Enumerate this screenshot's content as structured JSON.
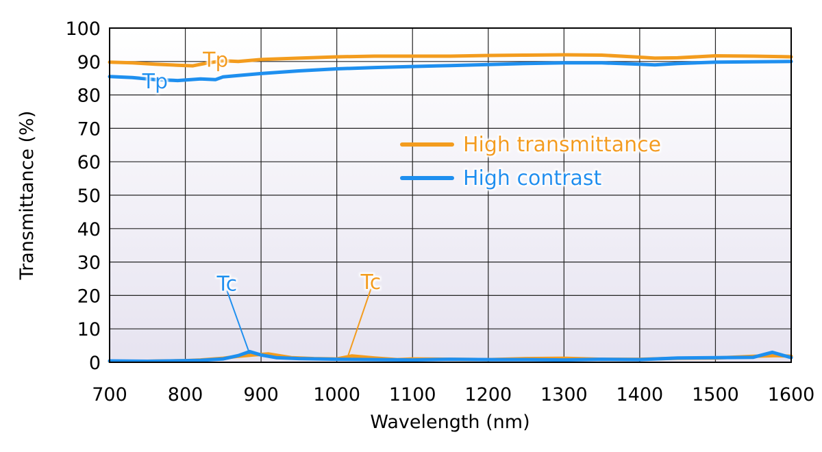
{
  "chart_data": {
    "type": "line",
    "title": "",
    "xlabel": "Wavelength (nm)",
    "ylabel": "Transmittance (%)",
    "xlim": [
      700,
      1600
    ],
    "ylim": [
      0,
      100
    ],
    "xticks": [
      700,
      800,
      900,
      1000,
      1100,
      1200,
      1300,
      1400,
      1500,
      1600
    ],
    "yticks": [
      0,
      10,
      20,
      30,
      40,
      50,
      60,
      70,
      80,
      90,
      100
    ],
    "grid": true,
    "legend_position": "top-right",
    "series": [
      {
        "name": "High transmittance",
        "color": "#f39c1e",
        "tp": {
          "x": [
            700,
            730,
            760,
            790,
            810,
            830,
            850,
            870,
            900,
            950,
            1000,
            1050,
            1100,
            1150,
            1200,
            1250,
            1300,
            1350,
            1400,
            1420,
            1450,
            1500,
            1550,
            1600
          ],
          "y": [
            89.8,
            89.6,
            89.2,
            88.9,
            88.7,
            89.6,
            90.2,
            90.0,
            90.6,
            91.0,
            91.4,
            91.6,
            91.6,
            91.6,
            91.8,
            91.9,
            92.0,
            91.9,
            91.3,
            91.0,
            91.1,
            91.7,
            91.6,
            91.4
          ]
        },
        "tc": {
          "x": [
            700,
            750,
            800,
            820,
            850,
            870,
            890,
            910,
            940,
            970,
            1000,
            1020,
            1050,
            1080,
            1100,
            1150,
            1200,
            1250,
            1300,
            1350,
            1400,
            1450,
            1500,
            1550,
            1580,
            1600
          ],
          "y": [
            0.3,
            0.3,
            0.5,
            0.7,
            1.2,
            1.8,
            2.2,
            2.5,
            1.4,
            1.1,
            1.0,
            1.9,
            1.3,
            0.8,
            1.0,
            0.9,
            0.8,
            1.1,
            1.2,
            0.9,
            0.9,
            1.2,
            1.3,
            1.8,
            2.0,
            1.8
          ]
        }
      },
      {
        "name": "High contrast",
        "color": "#1e8fef",
        "tp": {
          "x": [
            700,
            730,
            760,
            790,
            820,
            840,
            850,
            870,
            900,
            950,
            1000,
            1050,
            1100,
            1150,
            1200,
            1250,
            1300,
            1350,
            1400,
            1420,
            1450,
            1500,
            1550,
            1600
          ],
          "y": [
            85.5,
            85.2,
            84.6,
            84.3,
            84.8,
            84.6,
            85.4,
            85.8,
            86.4,
            87.2,
            87.8,
            88.2,
            88.5,
            88.8,
            89.1,
            89.4,
            89.6,
            89.6,
            89.2,
            89.0,
            89.4,
            89.8,
            89.9,
            90.0
          ]
        },
        "tc": {
          "x": [
            700,
            750,
            800,
            820,
            850,
            870,
            885,
            900,
            920,
            950,
            1000,
            1050,
            1100,
            1150,
            1200,
            1250,
            1300,
            1350,
            1400,
            1450,
            1500,
            1550,
            1575,
            1600
          ],
          "y": [
            0.4,
            0.3,
            0.5,
            0.6,
            1.0,
            2.0,
            3.2,
            2.2,
            1.4,
            1.1,
            0.9,
            0.8,
            0.7,
            0.9,
            0.8,
            0.8,
            0.7,
            0.9,
            0.8,
            1.3,
            1.4,
            1.5,
            3.0,
            1.4
          ]
        }
      }
    ],
    "annotations": [
      {
        "text": "Tp",
        "series": "High transmittance",
        "x": 840,
        "y": 90.5,
        "label_x": 840,
        "label_y": 90.5
      },
      {
        "text": "Tp",
        "series": "High contrast",
        "x": 760,
        "y": 84.0,
        "label_x": 760,
        "label_y": 84.0
      },
      {
        "text": "Tc",
        "series": "High contrast",
        "x": 885,
        "y": 2.5,
        "label_x": 855,
        "label_y": 23.5
      },
      {
        "text": "Tc",
        "series": "High transmittance",
        "x": 1015,
        "y": 2.0,
        "label_x": 1045,
        "label_y": 24.0
      }
    ]
  }
}
